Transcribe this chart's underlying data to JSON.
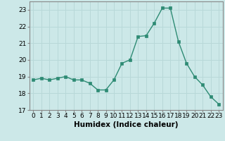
{
  "title": "",
  "xlabel": "Humidex (Indice chaleur)",
  "x": [
    0,
    1,
    2,
    3,
    4,
    5,
    6,
    7,
    8,
    9,
    10,
    11,
    12,
    13,
    14,
    15,
    16,
    17,
    18,
    19,
    20,
    21,
    22,
    23
  ],
  "y": [
    18.8,
    18.9,
    18.8,
    18.9,
    19.0,
    18.8,
    18.8,
    18.6,
    18.2,
    18.2,
    18.8,
    19.8,
    20.0,
    21.4,
    21.45,
    22.2,
    23.1,
    23.1,
    21.1,
    19.8,
    19.0,
    18.5,
    17.8,
    17.35
  ],
  "ylim": [
    17,
    23.5
  ],
  "yticks": [
    17,
    18,
    19,
    20,
    21,
    22,
    23
  ],
  "line_color": "#2e8b74",
  "marker_color": "#2e8b74",
  "bg_color": "#cce8e8",
  "grid_color": "#b8d8d8",
  "axis_color": "#888888",
  "xlabel_fontsize": 7.5,
  "tick_fontsize": 6.5
}
